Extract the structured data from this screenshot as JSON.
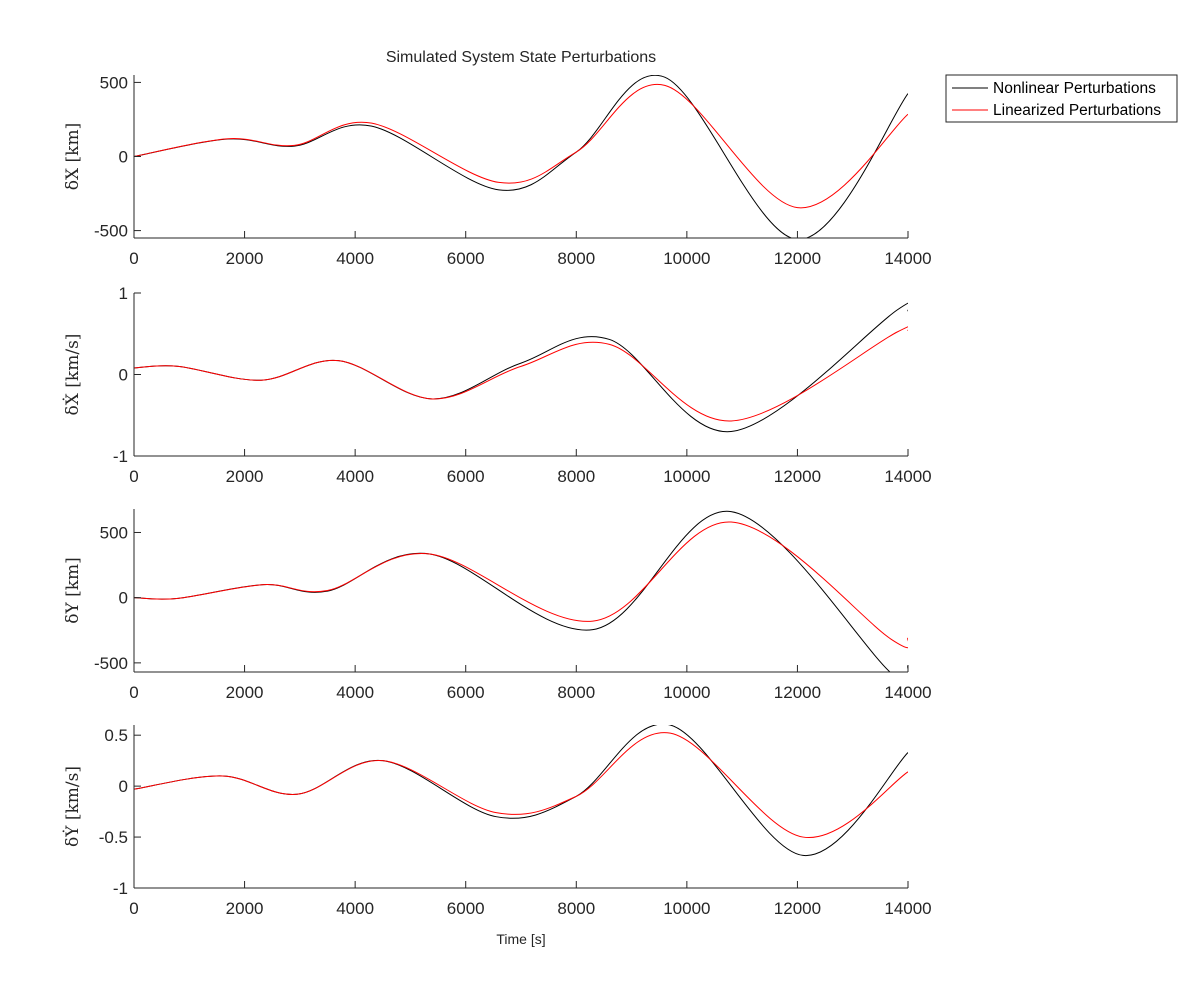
{
  "figure": {
    "title": "Simulated System State Perturbations",
    "xlabel": "Time [s]"
  },
  "legend": {
    "placement": "top-right outside",
    "entries": [
      {
        "label": "Nonlinear Perturbations",
        "color": "#000000"
      },
      {
        "label": "Linearized Perturbations",
        "color": "#ff0000"
      }
    ]
  },
  "chart_data": [
    {
      "type": "line",
      "ylabel": "δX [km]",
      "xlim": [
        0,
        14000
      ],
      "ylim": [
        -550,
        550
      ],
      "xticks": [
        "0",
        "2000",
        "4000",
        "6000",
        "8000",
        "10000",
        "12000",
        "14000"
      ],
      "yticks": [
        "-500",
        "0",
        "500"
      ],
      "ytick_values": [
        -500,
        0,
        500
      ],
      "grid": false,
      "x": [
        0,
        1700,
        2900,
        4300,
        6600,
        8000,
        9600,
        12000,
        14000
      ],
      "series": [
        {
          "name": "Nonlinear Perturbations",
          "color": "#000000",
          "values": [
            0,
            118,
            70,
            205,
            -225,
            30,
            535,
            -560,
            425
          ]
        },
        {
          "name": "Linearized Perturbations",
          "color": "#ff0000",
          "values": [
            0,
            120,
            75,
            225,
            -175,
            30,
            480,
            -345,
            285
          ]
        }
      ]
    },
    {
      "type": "line",
      "ylabel": "δẊ [km/s]",
      "xlim": [
        0,
        14000
      ],
      "ylim": [
        -1,
        1
      ],
      "xticks": [
        "0",
        "2000",
        "4000",
        "6000",
        "8000",
        "10000",
        "12000",
        "14000"
      ],
      "yticks": [
        "-1",
        "0",
        "1"
      ],
      "ytick_values": [
        -1,
        0,
        1
      ],
      "grid": false,
      "x": [
        0,
        800,
        2300,
        3700,
        5400,
        7000,
        8600,
        10800,
        13800,
        14000
      ],
      "series": [
        {
          "name": "Nonlinear Perturbations",
          "color": "#000000",
          "values": [
            0.08,
            0.1,
            -0.07,
            0.17,
            -0.3,
            0.14,
            0.43,
            -0.7,
            0.79,
            0.78
          ]
        },
        {
          "name": "Linearized Perturbations",
          "color": "#ff0000",
          "values": [
            0.08,
            0.1,
            -0.07,
            0.17,
            -0.3,
            0.1,
            0.37,
            -0.57,
            0.52,
            0.54
          ]
        }
      ]
    },
    {
      "type": "line",
      "ylabel": "δY [km]",
      "xlim": [
        0,
        14000
      ],
      "ylim": [
        -570,
        680
      ],
      "xticks": [
        "0",
        "2000",
        "4000",
        "6000",
        "8000",
        "10000",
        "12000",
        "14000"
      ],
      "yticks": [
        "-500",
        "0",
        "500"
      ],
      "ytick_values": [
        -500,
        0,
        500
      ],
      "grid": false,
      "x": [
        0,
        800,
        2350,
        3500,
        5350,
        8300,
        10800,
        13700,
        14000
      ],
      "series": [
        {
          "name": "Nonlinear Perturbations",
          "color": "#000000",
          "values": [
            0,
            -5,
            100,
            50,
            335,
            -245,
            660,
            -580,
            -520
          ]
        },
        {
          "name": "Linearized Perturbations",
          "color": "#ff0000",
          "values": [
            0,
            -5,
            100,
            55,
            335,
            -180,
            580,
            -320,
            -310
          ]
        }
      ]
    },
    {
      "type": "line",
      "ylabel": "δẎ [km/s]",
      "xlim": [
        0,
        14000
      ],
      "ylim": [
        -1,
        0.6
      ],
      "xticks": [
        "0",
        "2000",
        "4000",
        "6000",
        "8000",
        "10000",
        "12000",
        "14000"
      ],
      "yticks": [
        "-1",
        "-0.5",
        "0",
        "0.5"
      ],
      "ytick_values": [
        -1,
        -0.5,
        0,
        0.5
      ],
      "grid": false,
      "x": [
        0,
        1600,
        2950,
        4500,
        6550,
        8000,
        9700,
        12100,
        14000
      ],
      "series": [
        {
          "name": "Nonlinear Perturbations",
          "color": "#000000",
          "values": [
            -0.03,
            0.1,
            -0.08,
            0.25,
            -0.3,
            -0.1,
            0.6,
            -0.68,
            0.33
          ]
        },
        {
          "name": "Linearized Perturbations",
          "color": "#ff0000",
          "values": [
            -0.03,
            0.1,
            -0.08,
            0.25,
            -0.26,
            -0.1,
            0.52,
            -0.5,
            0.14
          ]
        }
      ]
    }
  ]
}
